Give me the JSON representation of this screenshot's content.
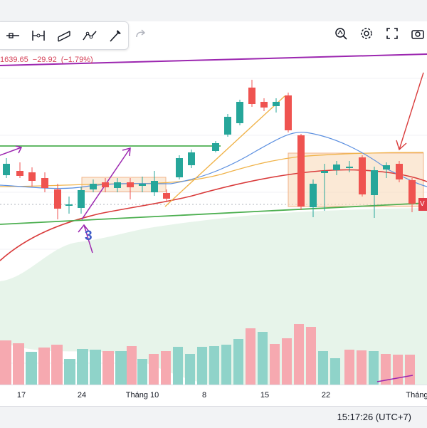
{
  "toolbar": {
    "tools": [
      "horizontal-line-icon",
      "price-range-icon",
      "parallel-channel-icon",
      "pattern-icon",
      "brush-icon"
    ],
    "redo_icon": "redo-icon"
  },
  "right_tools": [
    "zoom-icon",
    "gear-icon",
    "fullscreen-icon",
    "camera-icon"
  ],
  "price_status": {
    "price": "1639.65",
    "change": "−29.92",
    "change_pct": "(−1.79%)",
    "color": "#d6445a"
  },
  "x_axis_labels": [
    "17",
    "24",
    "Tháng 10",
    "8",
    "15",
    "22",
    "Tháng"
  ],
  "wave_label": "3",
  "price_tag": "V",
  "clock": "15:17:26 (UTC+7)",
  "colors": {
    "up": "#26a69a",
    "down": "#ef5350",
    "vol_up": "#8fd3c9",
    "vol_down": "#f6a9b0",
    "ma_red": "#d93b3b",
    "ma_blue": "#5b8fe0",
    "ma_orange": "#f0b34a",
    "trend_green": "#4caf50",
    "purple": "#9c27b0",
    "cloud": "#e7f4ea"
  }
}
